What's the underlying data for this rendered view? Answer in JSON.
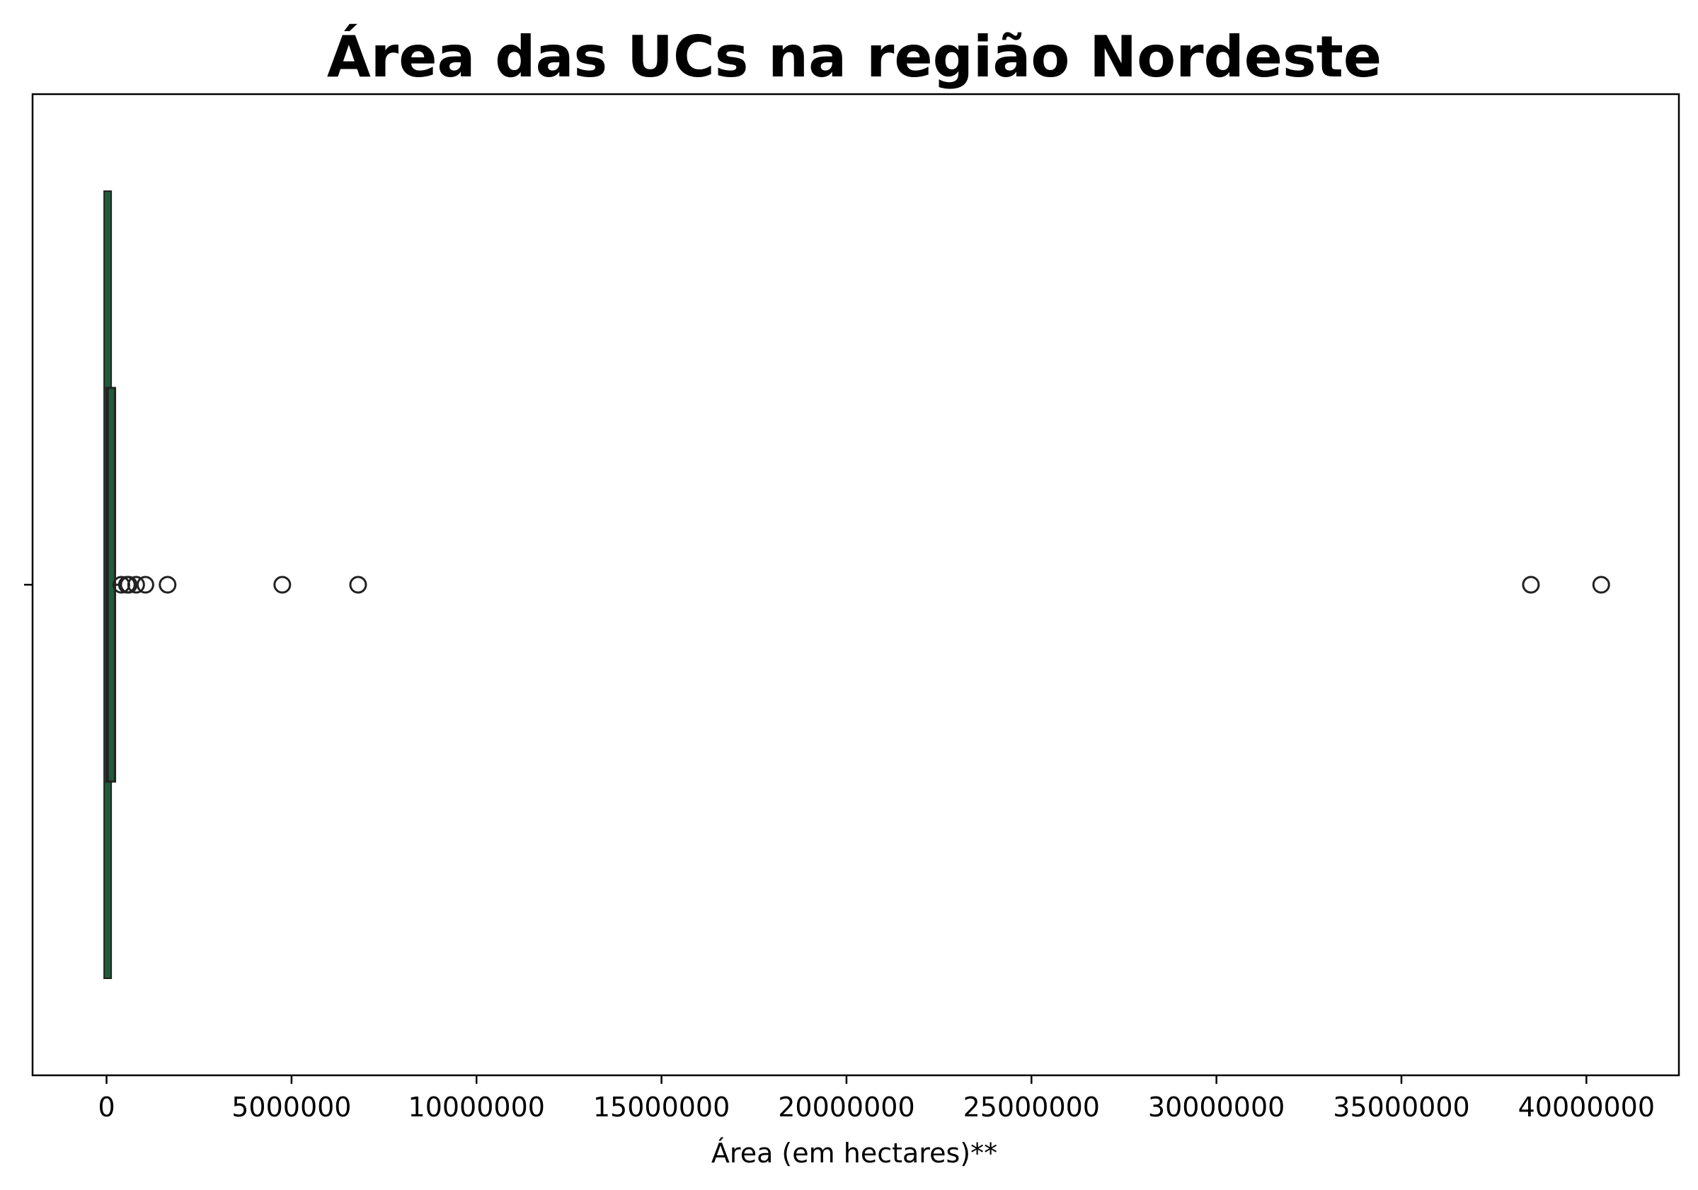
{
  "chart_data": {
    "type": "boxplot",
    "orientation": "horizontal",
    "title": "Área das UCs na região Nordeste",
    "xlabel": "Área (em hectares)**",
    "ylabel": "",
    "xlim": [
      -2000000,
      42500000
    ],
    "x_ticks": [
      0,
      5000000,
      10000000,
      15000000,
      20000000,
      25000000,
      30000000,
      35000000,
      40000000
    ],
    "x_tick_labels": [
      "0",
      "5000000",
      "10000000",
      "15000000",
      "20000000",
      "25000000",
      "30000000",
      "35000000",
      "40000000"
    ],
    "grid": false,
    "box": {
      "whisker_low": 0,
      "q1": 0,
      "median": 30000,
      "q3": 150000,
      "whisker_high": 350000
    },
    "outliers": [
      400000,
      550000,
      600000,
      800000,
      1050000,
      1650000,
      4750000,
      6800000,
      38500000,
      40400000
    ],
    "colors": {
      "box_fill": "#1f5c3a",
      "box_edge": "#222222",
      "outlier_edge": "#222222"
    }
  }
}
